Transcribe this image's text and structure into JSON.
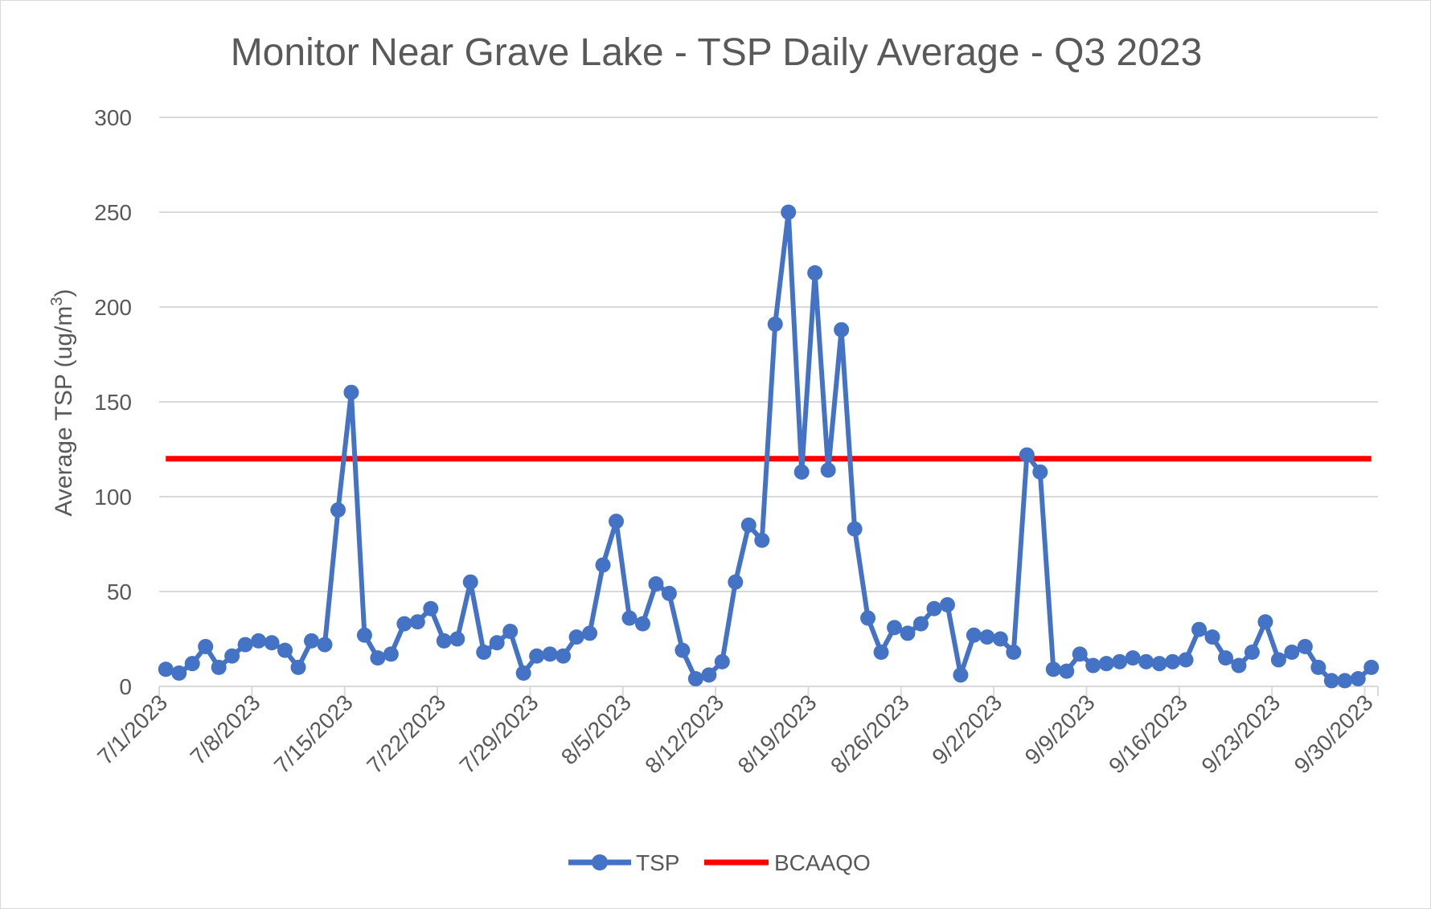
{
  "chart_data": {
    "type": "line",
    "title": "Monitor Near Grave Lake - TSP Daily Average - Q3 2023",
    "ylabel": "Average TSP (ug/m",
    "ylabel_superscript": "3",
    "ylabel_suffix": ")",
    "xlabel": "",
    "ylim": [
      0,
      300
    ],
    "yticks": [
      "0",
      "50",
      "100",
      "150",
      "200",
      "250",
      "300"
    ],
    "xtick_labels": [
      "7/1/2023",
      "7/8/2023",
      "7/15/2023",
      "7/22/2023",
      "7/29/2023",
      "8/5/2023",
      "8/12/2023",
      "8/19/2023",
      "8/26/2023",
      "9/2/2023",
      "9/9/2023",
      "9/16/2023",
      "9/23/2023",
      "9/30/2023"
    ],
    "x_start": "7/1/2023",
    "grid": "horizontal",
    "legend_position": "bottom",
    "series": [
      {
        "name": "TSP",
        "color": "#4472C4",
        "marker": "circle",
        "values": [
          9,
          7,
          12,
          21,
          10,
          16,
          22,
          24,
          23,
          19,
          10,
          24,
          22,
          93,
          155,
          27,
          15,
          17,
          33,
          34,
          41,
          24,
          25,
          55,
          18,
          23,
          29,
          7,
          16,
          17,
          16,
          26,
          28,
          64,
          87,
          36,
          33,
          54,
          49,
          19,
          4,
          6,
          13,
          55,
          85,
          77,
          191,
          250,
          113,
          218,
          114,
          188,
          83,
          36,
          18,
          31,
          28,
          33,
          41,
          43,
          6,
          27,
          26,
          25,
          18,
          122,
          113,
          9,
          8,
          17,
          11,
          12,
          13,
          15,
          13,
          12,
          13,
          14,
          30,
          26,
          15,
          11,
          18,
          34,
          14,
          18,
          21,
          10,
          3,
          3,
          4,
          10
        ]
      },
      {
        "name": "BCAAQO",
        "color": "#FF0000",
        "marker": "none",
        "constant": 120
      }
    ]
  }
}
